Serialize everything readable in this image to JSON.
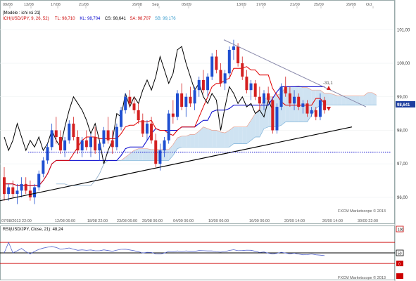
{
  "header": {
    "model_tag": "[Modèle : ichi rsi 21]",
    "indicator_legend": [
      {
        "text": "ICH(USD/JPY, 9, 26, 52)",
        "color": "#cc0000"
      },
      {
        "text": "TL: 98,710",
        "color": "#cc0000"
      },
      {
        "text": "KL: 98,704",
        "color": "#0000cc"
      },
      {
        "text": "CS: 98,641",
        "color": "#000000"
      },
      {
        "text": "SA: 98,707",
        "color": "#cc0000"
      },
      {
        "text": "SB: 99,176",
        "color": "#3399cc"
      }
    ]
  },
  "top_dates": [
    "09/08",
    "13/08",
    "17/08",
    "21/08",
    "29/08",
    "Sep",
    "05/09",
    "13/09",
    "17/09",
    "21/09",
    "25/09",
    "29/09",
    "Oct"
  ],
  "bottom_dates": [
    "07/08/2013 22:00",
    "12/08 06:00",
    "18/08 22:00",
    "23/08 06:00",
    "29/08 06:00",
    "04/09 06:00",
    "10/09 06:00",
    "16/09 06:00",
    "20/09 14:00",
    "26/09 14:00",
    "30/09 22:00"
  ],
  "price_axis": [
    "101,00",
    "100,00",
    "99,00",
    "98,00",
    "97,00",
    "96,00"
  ],
  "current_price": "98,641",
  "annotation": "-31,1",
  "watermark": "FXCM Marketscope © 2013",
  "rsi_panel": {
    "title": "RSI(USD/JPY, Close, 21): 48,24",
    "levels": [
      "100",
      "50",
      "0"
    ],
    "level_colors": {
      "100": "#cc0000",
      "50": "#000000",
      "0": "#cc0000"
    },
    "watermark": "FXCM Marketscope © 2013"
  },
  "colors": {
    "bull": "#1f4fd1",
    "bear": "#d42020",
    "tenkan": "#e00000",
    "kijun": "#0000cc",
    "chikou": "#000000",
    "cloud_bull": "#cfe3f2",
    "cloud_bear": "#f6d3c6",
    "trend": "#000000",
    "resistance": "#8888aa",
    "support_dotted": "#0000cc"
  },
  "chart_data": {
    "type": "candlestick",
    "title": "USD/JPY",
    "ylim": [
      95.6,
      101.3
    ],
    "candles": [
      {
        "o": 96.6,
        "h": 96.9,
        "l": 95.9,
        "c": 96.1
      },
      {
        "o": 96.1,
        "h": 96.4,
        "l": 95.9,
        "c": 96.3
      },
      {
        "o": 96.3,
        "h": 96.5,
        "l": 96.0,
        "c": 96.1
      },
      {
        "o": 96.1,
        "h": 96.4,
        "l": 95.8,
        "c": 96.2
      },
      {
        "o": 96.2,
        "h": 96.6,
        "l": 96.0,
        "c": 96.4
      },
      {
        "o": 96.4,
        "h": 96.6,
        "l": 96.1,
        "c": 96.2
      },
      {
        "o": 96.2,
        "h": 96.5,
        "l": 95.9,
        "c": 96.0
      },
      {
        "o": 96.0,
        "h": 96.4,
        "l": 95.8,
        "c": 96.3
      },
      {
        "o": 96.3,
        "h": 96.8,
        "l": 96.2,
        "c": 96.7
      },
      {
        "o": 96.7,
        "h": 97.2,
        "l": 96.6,
        "c": 97.1
      },
      {
        "o": 97.1,
        "h": 97.6,
        "l": 97.0,
        "c": 97.5
      },
      {
        "o": 97.5,
        "h": 98.2,
        "l": 97.4,
        "c": 98.0
      },
      {
        "o": 98.0,
        "h": 98.4,
        "l": 97.6,
        "c": 97.8
      },
      {
        "o": 97.8,
        "h": 98.0,
        "l": 97.3,
        "c": 97.4
      },
      {
        "o": 97.4,
        "h": 97.8,
        "l": 97.2,
        "c": 97.7
      },
      {
        "o": 97.7,
        "h": 98.3,
        "l": 97.6,
        "c": 98.2
      },
      {
        "o": 98.2,
        "h": 98.4,
        "l": 97.7,
        "c": 97.8
      },
      {
        "o": 97.8,
        "h": 98.0,
        "l": 97.3,
        "c": 97.4
      },
      {
        "o": 97.4,
        "h": 97.8,
        "l": 97.2,
        "c": 97.7
      },
      {
        "o": 97.7,
        "h": 98.0,
        "l": 97.4,
        "c": 97.5
      },
      {
        "o": 97.5,
        "h": 97.9,
        "l": 97.2,
        "c": 97.8
      },
      {
        "o": 97.8,
        "h": 98.1,
        "l": 97.3,
        "c": 97.4
      },
      {
        "o": 97.4,
        "h": 97.7,
        "l": 97.1,
        "c": 97.6
      },
      {
        "o": 97.6,
        "h": 98.1,
        "l": 97.5,
        "c": 98.0
      },
      {
        "o": 98.0,
        "h": 98.4,
        "l": 97.6,
        "c": 97.7
      },
      {
        "o": 97.7,
        "h": 98.0,
        "l": 97.3,
        "c": 97.5
      },
      {
        "o": 97.5,
        "h": 98.2,
        "l": 97.4,
        "c": 98.1
      },
      {
        "o": 98.1,
        "h": 98.7,
        "l": 98.0,
        "c": 98.6
      },
      {
        "o": 98.6,
        "h": 99.1,
        "l": 98.5,
        "c": 99.0
      },
      {
        "o": 99.0,
        "h": 99.2,
        "l": 98.7,
        "c": 98.8
      },
      {
        "o": 98.8,
        "h": 99.0,
        "l": 98.5,
        "c": 98.6
      },
      {
        "o": 98.6,
        "h": 98.8,
        "l": 98.2,
        "c": 98.3
      },
      {
        "o": 98.3,
        "h": 98.5,
        "l": 97.8,
        "c": 97.9
      },
      {
        "o": 97.9,
        "h": 98.3,
        "l": 97.7,
        "c": 98.2
      },
      {
        "o": 98.2,
        "h": 98.4,
        "l": 97.6,
        "c": 97.7
      },
      {
        "o": 97.7,
        "h": 97.9,
        "l": 96.9,
        "c": 97.0
      },
      {
        "o": 97.0,
        "h": 97.6,
        "l": 96.8,
        "c": 97.4
      },
      {
        "o": 97.4,
        "h": 97.8,
        "l": 97.2,
        "c": 97.7
      },
      {
        "o": 97.7,
        "h": 98.6,
        "l": 97.6,
        "c": 98.5
      },
      {
        "o": 98.5,
        "h": 98.9,
        "l": 98.2,
        "c": 98.4
      },
      {
        "o": 98.4,
        "h": 99.2,
        "l": 98.3,
        "c": 99.1
      },
      {
        "o": 99.1,
        "h": 99.4,
        "l": 98.6,
        "c": 98.7
      },
      {
        "o": 98.7,
        "h": 99.1,
        "l": 98.4,
        "c": 99.0
      },
      {
        "o": 99.0,
        "h": 99.3,
        "l": 98.7,
        "c": 98.8
      },
      {
        "o": 98.8,
        "h": 99.3,
        "l": 98.6,
        "c": 99.2
      },
      {
        "o": 99.2,
        "h": 99.6,
        "l": 99.0,
        "c": 99.5
      },
      {
        "o": 99.5,
        "h": 99.8,
        "l": 99.1,
        "c": 99.2
      },
      {
        "o": 99.2,
        "h": 99.7,
        "l": 99.0,
        "c": 99.6
      },
      {
        "o": 99.6,
        "h": 100.3,
        "l": 99.5,
        "c": 100.2
      },
      {
        "o": 100.2,
        "h": 100.4,
        "l": 99.7,
        "c": 99.8
      },
      {
        "o": 99.8,
        "h": 100.0,
        "l": 99.3,
        "c": 99.4
      },
      {
        "o": 99.4,
        "h": 99.8,
        "l": 99.2,
        "c": 99.7
      },
      {
        "o": 99.7,
        "h": 100.5,
        "l": 99.6,
        "c": 100.4
      },
      {
        "o": 100.4,
        "h": 100.7,
        "l": 100.1,
        "c": 100.5
      },
      {
        "o": 100.5,
        "h": 100.6,
        "l": 99.9,
        "c": 100.0
      },
      {
        "o": 100.0,
        "h": 100.2,
        "l": 99.5,
        "c": 99.6
      },
      {
        "o": 99.6,
        "h": 99.8,
        "l": 99.1,
        "c": 99.2
      },
      {
        "o": 99.2,
        "h": 99.5,
        "l": 98.9,
        "c": 99.4
      },
      {
        "o": 99.4,
        "h": 99.5,
        "l": 98.9,
        "c": 99.0
      },
      {
        "o": 99.0,
        "h": 99.3,
        "l": 98.6,
        "c": 98.8
      },
      {
        "o": 98.8,
        "h": 99.2,
        "l": 98.6,
        "c": 99.1
      },
      {
        "o": 99.1,
        "h": 99.3,
        "l": 98.8,
        "c": 98.9
      },
      {
        "o": 98.9,
        "h": 99.0,
        "l": 97.9,
        "c": 98.0
      },
      {
        "o": 98.0,
        "h": 98.8,
        "l": 97.9,
        "c": 98.7
      },
      {
        "o": 98.7,
        "h": 99.4,
        "l": 98.6,
        "c": 99.3
      },
      {
        "o": 99.3,
        "h": 99.6,
        "l": 99.0,
        "c": 99.1
      },
      {
        "o": 99.1,
        "h": 99.3,
        "l": 98.7,
        "c": 98.8
      },
      {
        "o": 98.8,
        "h": 99.2,
        "l": 98.6,
        "c": 99.0
      },
      {
        "o": 99.0,
        "h": 99.1,
        "l": 98.6,
        "c": 98.7
      },
      {
        "o": 98.7,
        "h": 98.9,
        "l": 98.5,
        "c": 98.8
      },
      {
        "o": 98.8,
        "h": 98.9,
        "l": 98.4,
        "c": 98.5
      },
      {
        "o": 98.5,
        "h": 98.7,
        "l": 98.4,
        "c": 98.6
      },
      {
        "o": 98.6,
        "h": 98.7,
        "l": 98.3,
        "c": 98.4
      },
      {
        "o": 98.4,
        "h": 99.1,
        "l": 98.3,
        "c": 98.9
      },
      {
        "o": 98.9,
        "h": 99.0,
        "l": 98.5,
        "c": 98.6
      }
    ],
    "rsi_levels": [
      100,
      50,
      0
    ]
  }
}
